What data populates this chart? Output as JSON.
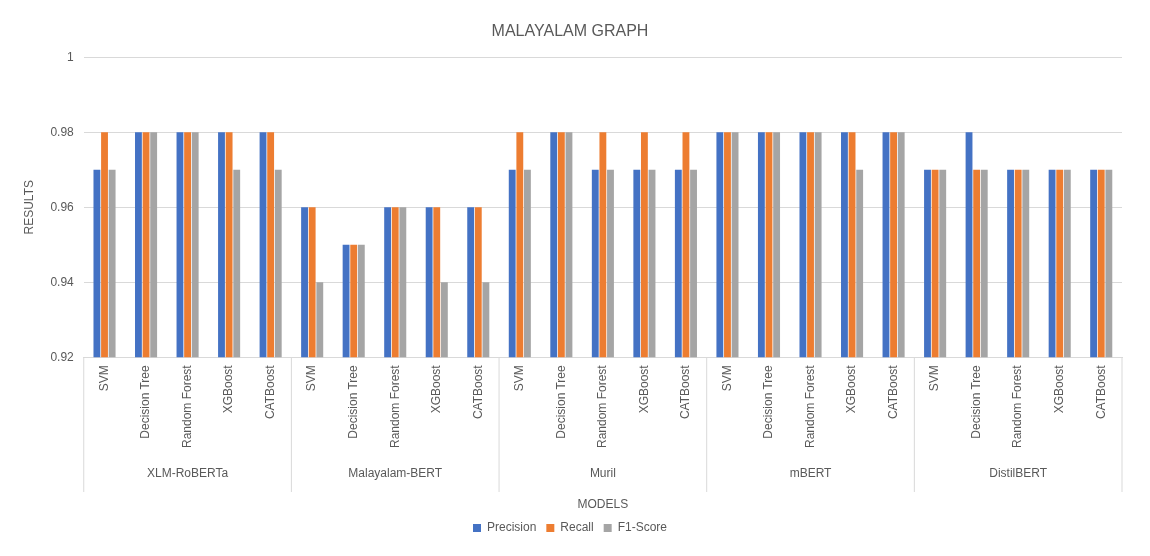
{
  "chart_data": {
    "type": "bar",
    "title": "MALAYALAM GRAPH",
    "xlabel": "MODELS",
    "ylabel": "RESULTS",
    "categories": [
      "SVM",
      "Decision Tree",
      "Random Forest",
      "XGBoost",
      "CATBoost",
      "SVM",
      "Decision Tree",
      "Random Forest",
      "XGBoost",
      "CATBoost",
      "SVM",
      "Decision Tree",
      "Random Forest",
      "XGBoost",
      "CATBoost",
      "SVM",
      "Decision Tree",
      "Random Forest",
      "XGBoost",
      "CATBoost",
      "SVM",
      "Decision Tree",
      "Random Forest",
      "XGBoost",
      "CATBoost"
    ],
    "annotations": [
      "XLM-RoBERTa",
      "Malayalam-BERT",
      "Muril",
      "mBERT",
      "DistilBERT"
    ],
    "series": [
      {
        "name": "Precision",
        "color": "#4472c4",
        "values": [
          0.97,
          0.98,
          0.98,
          0.98,
          0.98,
          0.96,
          0.95,
          0.96,
          0.96,
          0.96,
          0.97,
          0.98,
          0.97,
          0.97,
          0.97,
          0.98,
          0.98,
          0.98,
          0.98,
          0.98,
          0.97,
          0.98,
          0.97,
          0.97,
          0.97
        ]
      },
      {
        "name": "Recall",
        "color": "#ed7d31",
        "values": [
          0.98,
          0.98,
          0.98,
          0.98,
          0.98,
          0.96,
          0.95,
          0.96,
          0.96,
          0.96,
          0.98,
          0.98,
          0.98,
          0.98,
          0.98,
          0.98,
          0.98,
          0.98,
          0.98,
          0.98,
          0.97,
          0.97,
          0.97,
          0.97,
          0.97
        ]
      },
      {
        "name": "F1-Score",
        "color": "#a5a5a5",
        "values": [
          0.97,
          0.98,
          0.98,
          0.97,
          0.97,
          0.94,
          0.95,
          0.96,
          0.94,
          0.94,
          0.97,
          0.98,
          0.97,
          0.97,
          0.97,
          0.98,
          0.98,
          0.98,
          0.97,
          0.98,
          0.97,
          0.97,
          0.97,
          0.97,
          0.97
        ]
      }
    ],
    "ylim": [
      0.92,
      1
    ],
    "yticks": [
      0.92,
      0.94,
      0.96,
      0.98,
      1
    ],
    "grid": "y",
    "legend": "bottom"
  }
}
